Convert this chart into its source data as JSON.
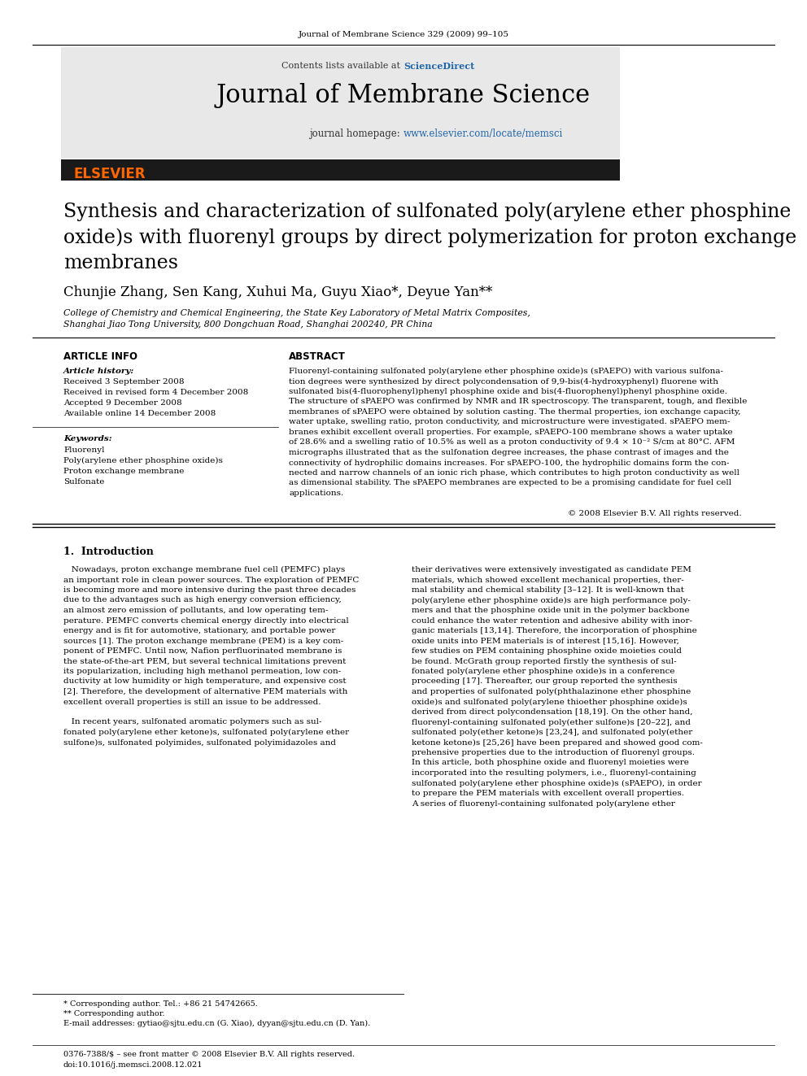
{
  "page_width": 9.92,
  "page_height": 13.23,
  "background_color": "#ffffff",
  "journal_ref": "Journal of Membrane Science 329 (2009) 99–105",
  "journal_name": "Journal of Membrane Science",
  "paper_title": "Synthesis and characterization of sulfonated poly(arylene ether phosphine oxide)s with fluorenyl groups by direct polymerization for proton exchange membranes",
  "authors": "Chunjie Zhang, Sen Kang, Xuhui Ma, Guyu Xiao*, Deyue Yan**",
  "affiliation_line1": "College of Chemistry and Chemical Engineering, the State Key Laboratory of Metal Matrix Composites,",
  "affiliation_line2": "Shanghai Jiao Tong University, 800 Dongchuan Road, Shanghai 200240, PR China",
  "article_info_header": "ARTICLE INFO",
  "abstract_header": "ABSTRACT",
  "article_history_label": "Article history:",
  "received": "Received 3 September 2008",
  "received_revised": "Received in revised form 4 December 2008",
  "accepted": "Accepted 9 December 2008",
  "available_online": "Available online 14 December 2008",
  "keywords_label": "Keywords:",
  "keywords": [
    "Fluorenyl",
    "Poly(arylene ether phosphine oxide)s",
    "Proton exchange membrane",
    "Sulfonate"
  ],
  "copyright": "© 2008 Elsevier B.V. All rights reserved.",
  "section1_header": "1.  Introduction",
  "footnote1": "* Corresponding author. Tel.: +86 21 54742665.",
  "footnote2": "** Corresponding author.",
  "footnote3": "E-mail addresses: gytiao@sjtu.edu.cn (G. Xiao), dyyan@sjtu.edu.cn (D. Yan).",
  "footer_left": "0376-7388/$ – see front matter © 2008 Elsevier B.V. All rights reserved.",
  "footer_doi": "doi:10.1016/j.memsci.2008.12.021",
  "sciencedirect_color": "#2166ac",
  "homepage_link_color": "#2166ac",
  "elsevier_color": "#ff6600",
  "header_bg_color": "#e8e8e8",
  "top_bar_color": "#1a1a1a",
  "abstract_lines": [
    "Fluorenyl-containing sulfonated poly(arylene ether phosphine oxide)s (sPAEPO) with various sulfona-",
    "tion degrees were synthesized by direct polycondensation of 9,9-bis(4-hydroxyphenyl) fluorene with",
    "sulfonated bis(4-fluorophenyl)phenyl phosphine oxide and bis(4-fluorophenyl)phenyl phosphine oxide.",
    "The structure of sPAEPO was confirmed by NMR and IR spectroscopy. The transparent, tough, and flexible",
    "membranes of sPAEPO were obtained by solution casting. The thermal properties, ion exchange capacity,",
    "water uptake, swelling ratio, proton conductivity, and microstructure were investigated. sPAEPO mem-",
    "branes exhibit excellent overall properties. For example, sPAEPO-100 membrane shows a water uptake",
    "of 28.6% and a swelling ratio of 10.5% as well as a proton conductivity of 9.4 × 10⁻² S/cm at 80°C. AFM",
    "micrographs illustrated that as the sulfonation degree increases, the phase contrast of images and the",
    "connectivity of hydrophilic domains increases. For sPAEPO-100, the hydrophilic domains form the con-",
    "nected and narrow channels of an ionic rich phase, which contributes to high proton conductivity as well",
    "as dimensional stability. The sPAEPO membranes are expected to be a promising candidate for fuel cell",
    "applications."
  ],
  "intro_left_lines": [
    "   Nowadays, proton exchange membrane fuel cell (PEMFC) plays",
    "an important role in clean power sources. The exploration of PEMFC",
    "is becoming more and more intensive during the past three decades",
    "due to the advantages such as high energy conversion efficiency,",
    "an almost zero emission of pollutants, and low operating tem-",
    "perature. PEMFC converts chemical energy directly into electrical",
    "energy and is fit for automotive, stationary, and portable power",
    "sources [1]. The proton exchange membrane (PEM) is a key com-",
    "ponent of PEMFC. Until now, Nafion perfluorinated membrane is",
    "the state-of-the-art PEM, but several technical limitations prevent",
    "its popularization, including high methanol permeation, low con-",
    "ductivity at low humidity or high temperature, and expensive cost",
    "[2]. Therefore, the development of alternative PEM materials with",
    "excellent overall properties is still an issue to be addressed.",
    "",
    "   In recent years, sulfonated aromatic polymers such as sul-",
    "fonated poly(arylene ether ketone)s, sulfonated poly(arylene ether",
    "sulfone)s, sulfonated polyimides, sulfonated polyimidazoles and"
  ],
  "intro_right_lines": [
    "their derivatives were extensively investigated as candidate PEM",
    "materials, which showed excellent mechanical properties, ther-",
    "mal stability and chemical stability [3–12]. It is well-known that",
    "poly(arylene ether phosphine oxide)s are high performance poly-",
    "mers and that the phosphine oxide unit in the polymer backbone",
    "could enhance the water retention and adhesive ability with inor-",
    "ganic materials [13,14]. Therefore, the incorporation of phosphine",
    "oxide units into PEM materials is of interest [15,16]. However,",
    "few studies on PEM containing phosphine oxide moieties could",
    "be found. McGrath group reported firstly the synthesis of sul-",
    "fonated poly(arylene ether phosphine oxide)s in a conference",
    "proceeding [17]. Thereafter, our group reported the synthesis",
    "and properties of sulfonated poly(phthalazinone ether phosphine",
    "oxide)s and sulfonated poly(arylene thioether phosphine oxide)s",
    "derived from direct polycondensation [18,19]. On the other hand,",
    "fluorenyl-containing sulfonated poly(ether sulfone)s [20–22], and",
    "sulfonated poly(ether ketone)s [23,24], and sulfonated poly(ether",
    "ketone ketone)s [25,26] have been prepared and showed good com-",
    "prehensive properties due to the introduction of fluorenyl groups.",
    "In this article, both phosphine oxide and fluorenyl moieties were",
    "incorporated into the resulting polymers, i.e., fluorenyl-containing",
    "sulfonated poly(arylene ether phosphine oxide)s (sPAEPO), in order",
    "to prepare the PEM materials with excellent overall properties.",
    "A series of fluorenyl-containing sulfonated poly(arylene ether"
  ]
}
